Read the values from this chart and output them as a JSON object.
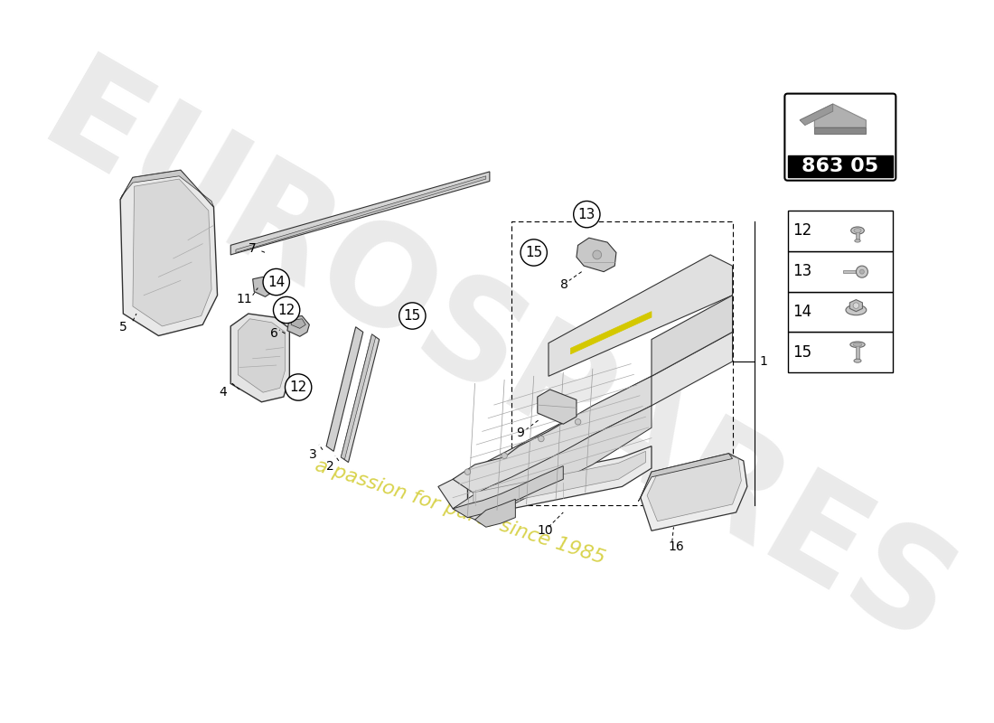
{
  "background_color": "#ffffff",
  "watermark_text1": "EUROSPARES",
  "watermark_text2": "a passion for parts since 1985",
  "part_number": "863 05",
  "accent_color": "#d4c800",
  "watermark_gray": "#d8d8d8",
  "watermark_yellow": "#d4c800",
  "line_color": "#333333",
  "fill_light": "#e8e8e8",
  "fill_medium": "#d0d0d0",
  "fill_dark": "#b8b8b8"
}
